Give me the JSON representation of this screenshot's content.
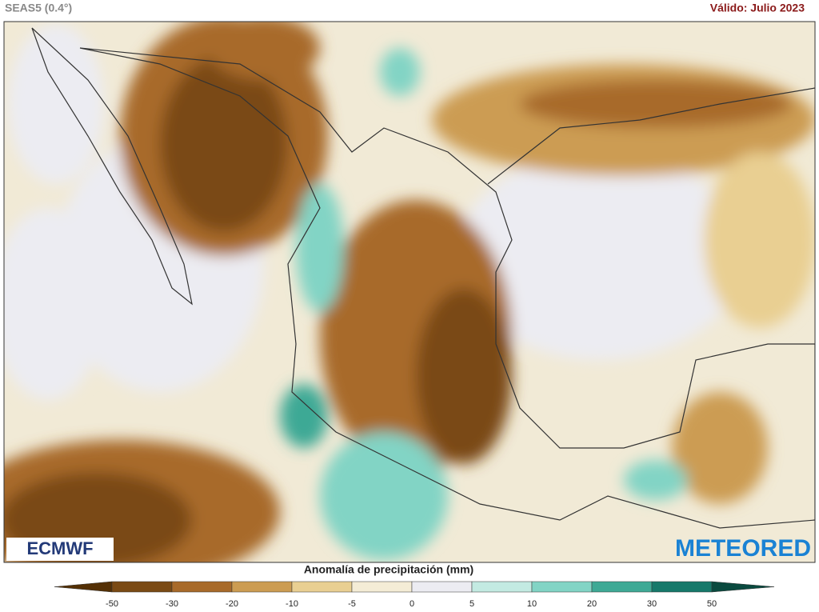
{
  "header": {
    "model": "SEAS5 (0.4°)",
    "valid": "Válido: Julio 2023"
  },
  "logos": {
    "left": "ECMWF",
    "right": "METEORED"
  },
  "legend": {
    "title": "Anomalía de precipitación (mm)",
    "ticks": [
      -50,
      -30,
      -20,
      -10,
      -5,
      0,
      5,
      10,
      20,
      30,
      50
    ],
    "colors": [
      "#543005",
      "#7a4a14",
      "#a86a2a",
      "#cc9c52",
      "#e9cf92",
      "#f4ecd6",
      "#ececf2",
      "#c3eae2",
      "#82d4c5",
      "#3ea995",
      "#16796a",
      "#0a4a3f"
    ]
  }
}
